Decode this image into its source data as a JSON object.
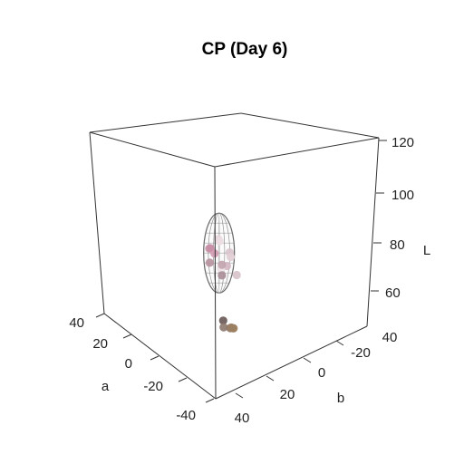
{
  "chart_data": {
    "type": "scatter3d",
    "title": "CP (Day 6)",
    "axes": {
      "a": {
        "label": "a",
        "ticks": [
          "40",
          "20",
          "0",
          "-20",
          "-40"
        ],
        "range": [
          -40,
          40
        ]
      },
      "b": {
        "label": "b",
        "ticks": [
          "-20",
          "0",
          "20",
          "40"
        ],
        "range": [
          -40,
          40
        ]
      },
      "L": {
        "label": "L",
        "ticks": [
          "60",
          "80",
          "100",
          "120"
        ],
        "range": [
          50,
          120
        ]
      },
      "overlap_label": "40"
    },
    "series": [
      {
        "points": [
          {
            "L": 97,
            "a": 2,
            "b": 0,
            "color": "#e7d6dc"
          },
          {
            "L": 95,
            "a": 4,
            "b": 2,
            "color": "#ebdde2"
          },
          {
            "L": 93,
            "a": -2,
            "b": 3,
            "color": "#d9c4cd"
          },
          {
            "L": 92,
            "a": 6,
            "b": -2,
            "color": "#c99aab"
          },
          {
            "L": 90,
            "a": 0,
            "b": 5,
            "color": "#e2cfd6"
          },
          {
            "L": 89,
            "a": -4,
            "b": 0,
            "color": "#d4b7c2"
          },
          {
            "L": 88,
            "a": 3,
            "b": -4,
            "color": "#b7929f"
          },
          {
            "L": 87,
            "a": -1,
            "b": -1,
            "color": "#eee2e6"
          },
          {
            "L": 85,
            "a": 5,
            "b": 4,
            "color": "#c2a5b0"
          },
          {
            "L": 84,
            "a": -3,
            "b": 6,
            "color": "#d8c2ca"
          },
          {
            "L": 83,
            "a": 1,
            "b": 1,
            "color": "#a98e98"
          },
          {
            "L": 91,
            "a": 8,
            "b": 0,
            "color": "#c88fa6"
          },
          {
            "L": 88,
            "a": 9,
            "b": 3,
            "color": "#d49bb2"
          },
          {
            "L": 64,
            "a": 3,
            "b": 3,
            "color": "#6b5a58"
          },
          {
            "L": 63,
            "a": 0,
            "b": 1,
            "color": "#8e7a70"
          },
          {
            "L": 61,
            "a": 2,
            "b": 6,
            "color": "#8a7566"
          },
          {
            "L": 60,
            "a": 4,
            "b": 8,
            "color": "#9c8068"
          },
          {
            "L": 59,
            "a": 5,
            "b": 10,
            "color": "#a58767"
          },
          {
            "L": 58,
            "a": 7,
            "b": 11,
            "color": "#9a7f61"
          }
        ]
      }
    ],
    "ellipsoid": {
      "center": {
        "L": 91,
        "a": 3,
        "b": 1
      },
      "color": "#888888"
    }
  }
}
